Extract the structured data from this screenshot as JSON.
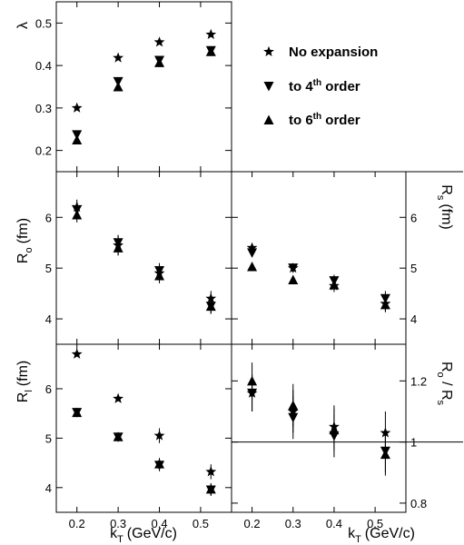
{
  "chart_data": {
    "type": "scatter",
    "x_axis_label": "k",
    "x_axis_label_sub": "T",
    "x_axis_label_unit": "(GeV/c)",
    "x_ticks": [
      "0.2",
      "0.3",
      "0.4",
      "0.5"
    ],
    "xlim": [
      0.15,
      0.575
    ],
    "legend": {
      "position": "top-right",
      "entries": [
        {
          "key": "no_expansion",
          "symbol": "star",
          "label": "No expansion"
        },
        {
          "key": "order4",
          "symbol": "triangle-down",
          "label": "to 4",
          "sup": "th",
          "suffix": " order"
        },
        {
          "key": "order6",
          "symbol": "triangle-up",
          "label": "to 6",
          "sup": "th",
          "suffix": " order"
        }
      ]
    },
    "panels": [
      {
        "id": "lambda",
        "ylabel": "λ",
        "ylim": [
          0.15,
          0.55
        ],
        "yticks": [
          {
            "value": 0.2,
            "label": "0.2"
          },
          {
            "value": 0.3,
            "label": "0.3"
          },
          {
            "value": 0.4,
            "label": "0.4"
          },
          {
            "value": 0.5,
            "label": "0.5"
          }
        ],
        "x": [
          0.2,
          0.3,
          0.4,
          0.525
        ],
        "series": [
          {
            "key": "no_expansion",
            "y": [
              0.3,
              0.418,
              0.455,
              0.473
            ],
            "err": [
              0,
              0,
              0,
              0
            ]
          },
          {
            "key": "order4",
            "y": [
              0.237,
              0.362,
              0.412,
              0.435
            ],
            "err": [
              0,
              0,
              0,
              0
            ]
          },
          {
            "key": "order6",
            "y": [
              0.225,
              0.35,
              0.407,
              0.433
            ],
            "err": [
              0,
              0,
              0,
              0
            ]
          }
        ]
      },
      {
        "id": "Ro",
        "ylabel": "R",
        "ylabel_sub": "o",
        "ylabel_unit": "(fm)",
        "ylim": [
          3.5,
          6.9
        ],
        "yticks": [
          {
            "value": 4,
            "label": "4"
          },
          {
            "value": 5,
            "label": "5"
          },
          {
            "value": 6,
            "label": "6"
          }
        ],
        "x": [
          0.2,
          0.3,
          0.4,
          0.525
        ],
        "series": [
          {
            "key": "no_expansion",
            "y": [
              6.2,
              5.45,
              4.9,
              4.4
            ],
            "err": [
              0.15,
              0.2,
              0.15,
              0.15
            ]
          },
          {
            "key": "order4",
            "y": [
              6.15,
              5.5,
              4.95,
              4.25
            ],
            "err": [
              0.15,
              0.15,
              0.15,
              0.15
            ]
          },
          {
            "key": "order6",
            "y": [
              6.05,
              5.4,
              4.85,
              4.25
            ],
            "err": [
              0.15,
              0.15,
              0.15,
              0.15
            ]
          }
        ]
      },
      {
        "id": "Rs",
        "ylabel": "R",
        "ylabel_sub": "s",
        "ylabel_unit": "(fm)",
        "ylim": [
          3.5,
          6.9
        ],
        "yticks": [
          {
            "value": 4,
            "label": "4"
          },
          {
            "value": 5,
            "label": "5"
          },
          {
            "value": 6,
            "label": "6"
          }
        ],
        "x": [
          0.2,
          0.3,
          0.4,
          0.525
        ],
        "series": [
          {
            "key": "no_expansion",
            "y": [
              5.4,
              5.0,
              4.65,
              4.3
            ],
            "err": [
              0.08,
              0.08,
              0.12,
              0.15
            ]
          },
          {
            "key": "order4",
            "y": [
              5.3,
              5.0,
              4.75,
              4.4
            ],
            "err": [
              0.08,
              0.08,
              0.12,
              0.15
            ]
          },
          {
            "key": "order6",
            "y": [
              5.03,
              4.77,
              4.67,
              4.28
            ],
            "err": [
              0.08,
              0.08,
              0.12,
              0.15
            ]
          }
        ]
      },
      {
        "id": "Rl",
        "ylabel": "R",
        "ylabel_sub": "l",
        "ylabel_unit": "(fm)",
        "ylim": [
          3.5,
          6.9
        ],
        "yticks": [
          {
            "value": 4,
            "label": "4"
          },
          {
            "value": 5,
            "label": "5"
          },
          {
            "value": 6,
            "label": "6"
          }
        ],
        "x": [
          0.2,
          0.3,
          0.4,
          0.525
        ],
        "series": [
          {
            "key": "no_expansion",
            "y": [
              6.7,
              5.8,
              5.05,
              4.32
            ],
            "err": [
              0,
              0,
              0.15,
              0.15
            ]
          },
          {
            "key": "order4",
            "y": [
              5.52,
              5.02,
              4.45,
              3.95
            ],
            "err": [
              0.05,
              0.08,
              0.12,
              0.12
            ]
          },
          {
            "key": "order6",
            "y": [
              5.52,
              5.03,
              4.48,
              3.97
            ],
            "err": [
              0.05,
              0.08,
              0.12,
              0.12
            ]
          }
        ]
      },
      {
        "id": "RoRs",
        "ylabel": "R",
        "ylabel_sub": "o",
        "ylabel_sep": " / ",
        "ylabel2": "R",
        "ylabel2_sub": "s",
        "ylim": [
          0.77,
          1.32
        ],
        "reference_line": 1,
        "yticks": [
          {
            "value": 0.8,
            "label": "0.8"
          },
          {
            "value": 1.0,
            "label": "1"
          },
          {
            "value": 1.2,
            "label": "1.2"
          }
        ],
        "x": [
          0.2,
          0.3,
          0.4,
          0.525
        ],
        "series": [
          {
            "key": "no_expansion",
            "y": [
              1.16,
              1.1,
              1.05,
              1.03
            ],
            "err": [
              0.06,
              0.07,
              0.07,
              0.07
            ]
          },
          {
            "key": "order4",
            "y": [
              1.16,
              1.08,
              1.02,
              0.97
            ],
            "err": [
              0.06,
              0.07,
              0.07,
              0.07
            ]
          },
          {
            "key": "order6",
            "y": [
              1.2,
              1.12,
              1.04,
              0.96
            ],
            "err": [
              0.06,
              0.07,
              0.07,
              0.07
            ]
          }
        ]
      }
    ]
  }
}
